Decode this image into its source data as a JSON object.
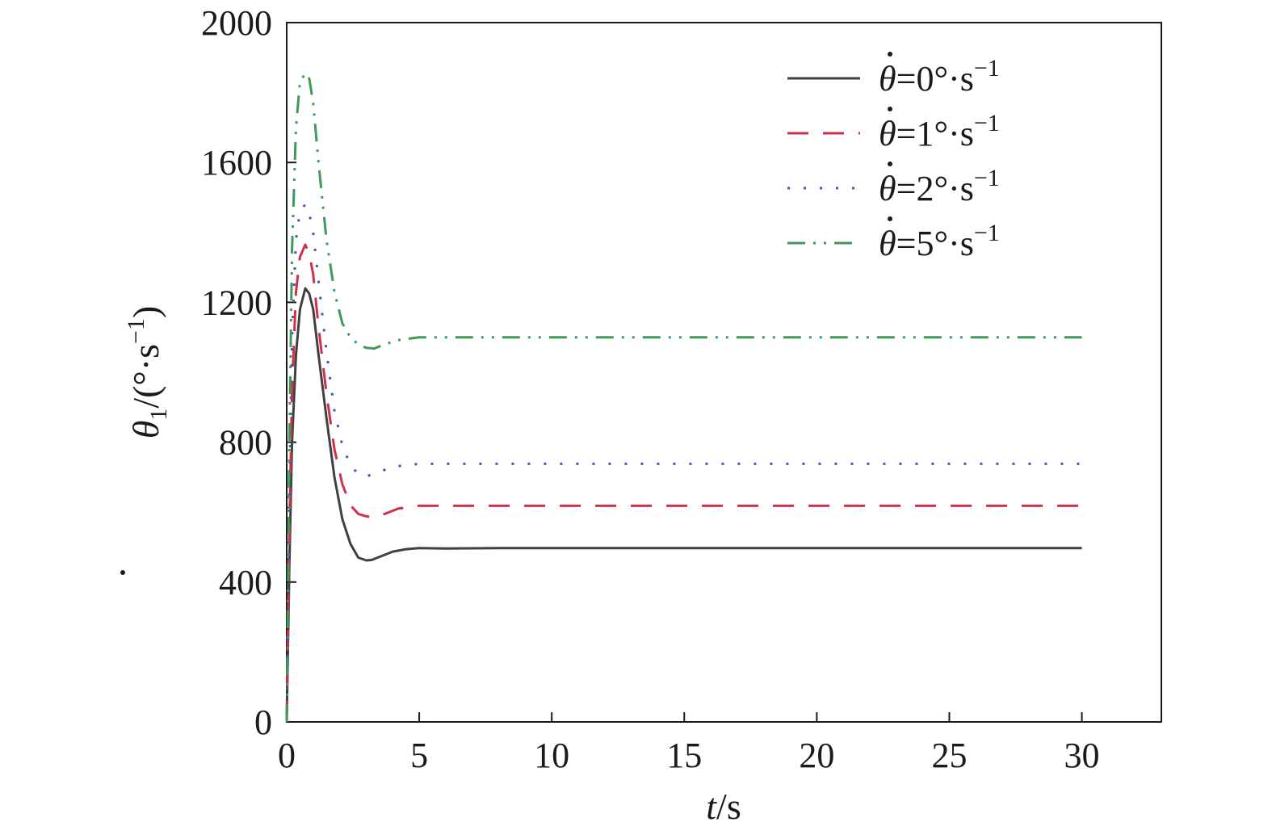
{
  "chart_data": {
    "type": "line",
    "xlabel": {
      "var": "t",
      "unit": "/s"
    },
    "ylabel": {
      "var": "θ",
      "sub": "1",
      "unit": "/(°·s",
      "sup": "−1",
      "close": ")"
    },
    "xlim": [
      0,
      33
    ],
    "ylim": [
      0,
      2000
    ],
    "xticks": [
      0,
      5,
      10,
      15,
      20,
      25,
      30
    ],
    "yticks": [
      0,
      400,
      800,
      1200,
      1600,
      2000
    ],
    "grid": false,
    "legend_position": "top-right",
    "series": [
      {
        "name": "θ=0°·s",
        "legend": {
          "var": "θ",
          "rest": "=0°·s",
          "sup": "−1"
        },
        "color": "#404040",
        "dash": "solid",
        "x": [
          0,
          0.1,
          0.2,
          0.35,
          0.5,
          0.7,
          0.85,
          1.0,
          1.2,
          1.5,
          1.8,
          2.1,
          2.4,
          2.7,
          3.0,
          3.2,
          3.5,
          4.0,
          4.5,
          5.0,
          6.0,
          8.0,
          10,
          15,
          20,
          25,
          30
        ],
        "y": [
          0,
          450,
          800,
          1050,
          1180,
          1240,
          1225,
          1180,
          1050,
          870,
          700,
          580,
          510,
          470,
          462,
          463,
          472,
          487,
          494,
          497,
          496,
          497,
          497,
          497,
          497,
          497,
          497
        ]
      },
      {
        "name": "θ=1°·s",
        "legend": {
          "var": "θ",
          "rest": "=1°·s",
          "sup": "−1"
        },
        "color": "#d0314a",
        "dash": "dashed",
        "x": [
          0,
          0.1,
          0.2,
          0.35,
          0.5,
          0.7,
          0.85,
          1.0,
          1.2,
          1.5,
          1.8,
          2.1,
          2.4,
          2.7,
          3.0,
          3.3,
          3.7,
          4.2,
          5.0,
          6.0,
          10,
          15,
          20,
          25,
          30
        ],
        "y": [
          0,
          550,
          950,
          1230,
          1330,
          1365,
          1340,
          1280,
          1130,
          940,
          780,
          680,
          620,
          595,
          588,
          586,
          595,
          610,
          618,
          618,
          618,
          618,
          618,
          618,
          618
        ]
      },
      {
        "name": "θ=2°·s",
        "legend": {
          "var": "θ",
          "rest": "=2°·s",
          "sup": "−1"
        },
        "color": "#3a5bb0",
        "dash": "dotted",
        "x": [
          0,
          0.1,
          0.2,
          0.35,
          0.5,
          0.7,
          0.85,
          1.0,
          1.2,
          1.5,
          1.8,
          2.1,
          2.4,
          2.7,
          3.0,
          3.5,
          4.0,
          5.0,
          6.0,
          10,
          15,
          20,
          25,
          30
        ],
        "y": [
          0,
          650,
          1100,
          1380,
          1460,
          1480,
          1455,
          1400,
          1260,
          1060,
          890,
          790,
          735,
          708,
          702,
          715,
          730,
          738,
          738,
          738,
          738,
          738,
          738,
          738
        ]
      },
      {
        "name": "θ=5°·s",
        "legend": {
          "var": "θ",
          "rest": "=5°·s",
          "sup": "−1"
        },
        "color": "#3f9a5a",
        "dash": "dashdotdot",
        "x": [
          0,
          0.1,
          0.2,
          0.35,
          0.5,
          0.7,
          0.85,
          1.0,
          1.2,
          1.5,
          1.8,
          2.1,
          2.4,
          2.7,
          3.0,
          3.3,
          3.7,
          4.2,
          5.0,
          6.0,
          10,
          15,
          20,
          25,
          30
        ],
        "y": [
          0,
          800,
          1350,
          1700,
          1830,
          1855,
          1840,
          1770,
          1600,
          1380,
          1230,
          1140,
          1100,
          1080,
          1070,
          1068,
          1080,
          1092,
          1100,
          1100,
          1100,
          1100,
          1100,
          1100,
          1100
        ]
      }
    ]
  }
}
